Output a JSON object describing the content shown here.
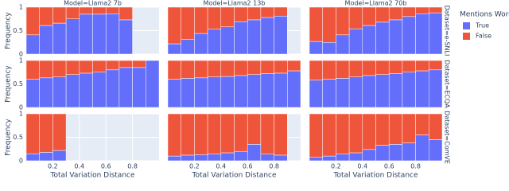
{
  "chart_data": {
    "type": "stacked-histogram",
    "legend_title": "Mentions Word",
    "x_label": "Total Variation Distance",
    "y_label": "Frequency",
    "columns": [
      "Model=Llama2 7b",
      "Model=Llama2 13b",
      "Model=Llama2 70b"
    ],
    "rows": [
      "Dataset=e-SNLI",
      "Dataset=ECQA",
      "Dataset=ComVE"
    ],
    "series": [
      {
        "name": "True",
        "color": "#636efa"
      },
      {
        "name": "False",
        "color": "#ef553b"
      }
    ],
    "xlim": [
      0,
      1
    ],
    "xticks": [
      0.2,
      0.4,
      0.6,
      0.8
    ],
    "ylim": [
      0,
      1
    ],
    "yticks": [
      0,
      0.5,
      1
    ],
    "grid": true,
    "panels": [
      {
        "bins": [
          0,
          0.1,
          0.2,
          0.3,
          0.4,
          0.5,
          0.6,
          0.7,
          0.8
        ],
        "values": [
          [
            0.41,
            0.61,
            0.66,
            0.75,
            0.85,
            0.85,
            0.86,
            0.73
          ],
          [
            0.59,
            0.39,
            0.34,
            0.25,
            0.15,
            0.15,
            0.14,
            0.27
          ]
        ]
      },
      {
        "bins": [
          0,
          0.1,
          0.2,
          0.3,
          0.4,
          0.5,
          0.6,
          0.7,
          0.8,
          0.9
        ],
        "values": [
          [
            0.22,
            0.31,
            0.44,
            0.53,
            0.58,
            0.69,
            0.73,
            0.78,
            0.81
          ],
          [
            0.78,
            0.69,
            0.56,
            0.47,
            0.42,
            0.31,
            0.27,
            0.22,
            0.19
          ]
        ]
      },
      {
        "bins": [
          0,
          0.1,
          0.2,
          0.3,
          0.4,
          0.5,
          0.6,
          0.7,
          0.8,
          0.9,
          1
        ],
        "values": [
          [
            0.27,
            0.25,
            0.41,
            0.54,
            0.61,
            0.68,
            0.73,
            0.8,
            0.86,
            0.88
          ],
          [
            0.73,
            0.75,
            0.59,
            0.46,
            0.39,
            0.32,
            0.27,
            0.2,
            0.14,
            0.12
          ]
        ]
      },
      {
        "bins": [
          0,
          0.1,
          0.2,
          0.3,
          0.4,
          0.5,
          0.6,
          0.7,
          0.8,
          0.9,
          1
        ],
        "values": [
          [
            0.6,
            0.63,
            0.65,
            0.7,
            0.73,
            0.75,
            0.8,
            0.85,
            0.85,
            1
          ],
          [
            0.4,
            0.37,
            0.35,
            0.3,
            0.27,
            0.25,
            0.2,
            0.15,
            0.15,
            0
          ]
        ]
      },
      {
        "bins": [
          0,
          0.1,
          0.2,
          0.3,
          0.4,
          0.5,
          0.6,
          0.7,
          0.8,
          0.9,
          1
        ],
        "values": [
          [
            0.6,
            0.62,
            0.63,
            0.65,
            0.66,
            0.68,
            0.7,
            0.72,
            0.73,
            0.78
          ],
          [
            0.4,
            0.38,
            0.37,
            0.35,
            0.34,
            0.32,
            0.3,
            0.28,
            0.27,
            0.22
          ]
        ]
      },
      {
        "bins": [
          0,
          0.1,
          0.2,
          0.3,
          0.4,
          0.5,
          0.6,
          0.7,
          0.8,
          0.9,
          1
        ],
        "values": [
          [
            0.58,
            0.6,
            0.62,
            0.65,
            0.68,
            0.7,
            0.72,
            0.75,
            0.78,
            0.8
          ],
          [
            0.42,
            0.4,
            0.38,
            0.35,
            0.32,
            0.3,
            0.28,
            0.25,
            0.22,
            0.2
          ]
        ]
      },
      {
        "bins": [
          0,
          0.1,
          0.2,
          0.3
        ],
        "values": [
          [
            0.15,
            0.18,
            0.22
          ],
          [
            0.85,
            0.82,
            0.78
          ]
        ]
      },
      {
        "bins": [
          0,
          0.1,
          0.2,
          0.3,
          0.4,
          0.5,
          0.6,
          0.7,
          0.8,
          0.9
        ],
        "values": [
          [
            0.1,
            0.12,
            0.13,
            0.14,
            0.17,
            0.2,
            0.35,
            0.14,
            0.12
          ],
          [
            0.9,
            0.88,
            0.87,
            0.86,
            0.83,
            0.8,
            0.65,
            0.86,
            0.88
          ]
        ]
      },
      {
        "bins": [
          0,
          0.1,
          0.2,
          0.3,
          0.4,
          0.5,
          0.6,
          0.7,
          0.8,
          0.9,
          1
        ],
        "values": [
          [
            0.08,
            0.1,
            0.14,
            0.17,
            0.24,
            0.33,
            0.35,
            0.38,
            0.55,
            0.45
          ],
          [
            0.92,
            0.9,
            0.86,
            0.83,
            0.76,
            0.67,
            0.65,
            0.62,
            0.45,
            0.55
          ]
        ]
      }
    ]
  }
}
